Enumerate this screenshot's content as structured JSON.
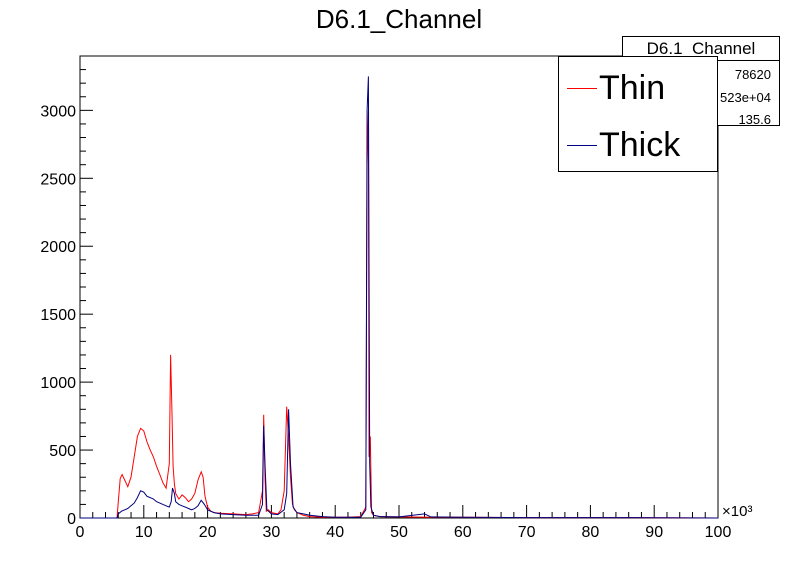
{
  "chart_data": {
    "type": "line",
    "title": "D6.1_Channel",
    "xlabel": "",
    "ylabel": "",
    "x_multiplier_label": "×10³",
    "xlim": [
      0,
      100
    ],
    "ylim": [
      0,
      3400
    ],
    "x_ticks": [
      "0",
      "10",
      "20",
      "30",
      "40",
      "50",
      "60",
      "70",
      "80",
      "90",
      "100"
    ],
    "y_ticks": [
      "0",
      "500",
      "1000",
      "1500",
      "2000",
      "2500",
      "3000"
    ],
    "grid": false,
    "legend_placement": "top-right",
    "series": [
      {
        "name": "Thin",
        "color": "#ff0000",
        "x": [
          0,
          5.8,
          6.0,
          6.3,
          6.6,
          7.0,
          7.5,
          8.0,
          8.5,
          9.0,
          9.5,
          10.0,
          10.5,
          11.0,
          11.5,
          12.0,
          12.5,
          13.0,
          13.5,
          14.0,
          14.2,
          14.4,
          14.6,
          14.8,
          15.0,
          15.5,
          16.0,
          16.5,
          17.0,
          17.5,
          18.0,
          18.5,
          19.0,
          19.3,
          19.6,
          20.0,
          20.5,
          21.0,
          22,
          24,
          26,
          27,
          28,
          28.6,
          28.8,
          29.0,
          29.2,
          29.5,
          30,
          31,
          31.5,
          32,
          32.4,
          32.7,
          33.0,
          33.3,
          33.6,
          34,
          35,
          36,
          38,
          40,
          42,
          44,
          44.8,
          45.0,
          45.2,
          45.3,
          45.5,
          45.7,
          46,
          47,
          50,
          55,
          60,
          70,
          80,
          90,
          100
        ],
        "y": [
          0,
          0,
          120,
          290,
          320,
          280,
          230,
          300,
          450,
          600,
          660,
          640,
          560,
          500,
          450,
          380,
          320,
          260,
          220,
          400,
          1200,
          800,
          380,
          250,
          180,
          140,
          170,
          150,
          120,
          140,
          180,
          280,
          340,
          300,
          160,
          80,
          50,
          40,
          35,
          30,
          25,
          30,
          40,
          200,
          760,
          300,
          50,
          60,
          40,
          30,
          60,
          200,
          820,
          600,
          300,
          100,
          60,
          40,
          20,
          10,
          5,
          5,
          5,
          10,
          80,
          2600,
          3000,
          450,
          600,
          40,
          20,
          10,
          8,
          5,
          5,
          3,
          3,
          2,
          0
        ]
      },
      {
        "name": "Thick",
        "color": "#000080",
        "x": [
          0,
          5.8,
          6.0,
          6.5,
          7.0,
          7.5,
          8.0,
          8.5,
          9.0,
          9.5,
          10.0,
          10.5,
          11.0,
          11.5,
          12.0,
          12.5,
          13.0,
          13.5,
          14.0,
          14.3,
          14.5,
          14.8,
          15.0,
          15.5,
          16.0,
          16.5,
          17.0,
          17.5,
          18.0,
          18.5,
          19.0,
          19.5,
          20.0,
          21,
          22,
          24,
          26,
          28,
          28.6,
          28.8,
          29.0,
          29.3,
          30,
          31,
          32,
          32.4,
          32.7,
          33.0,
          33.4,
          34,
          35,
          36,
          38,
          40,
          44,
          44.8,
          45.0,
          45.2,
          45.4,
          45.6,
          46,
          47,
          50,
          54,
          55,
          60,
          70,
          80,
          90,
          100
        ],
        "y": [
          0,
          0,
          30,
          50,
          60,
          70,
          90,
          110,
          150,
          200,
          190,
          160,
          150,
          140,
          120,
          110,
          100,
          90,
          80,
          120,
          220,
          180,
          120,
          100,
          90,
          80,
          70,
          60,
          70,
          90,
          130,
          100,
          60,
          40,
          30,
          25,
          20,
          20,
          100,
          680,
          400,
          60,
          30,
          25,
          60,
          180,
          800,
          400,
          80,
          40,
          30,
          20,
          10,
          5,
          5,
          60,
          3000,
          3250,
          400,
          80,
          20,
          10,
          8,
          30,
          8,
          5,
          3,
          3,
          2,
          0
        ]
      }
    ]
  },
  "stats": {
    "title": "D6.1_Channel",
    "rows": [
      "78620",
      "523e+04",
      "135.6"
    ]
  }
}
